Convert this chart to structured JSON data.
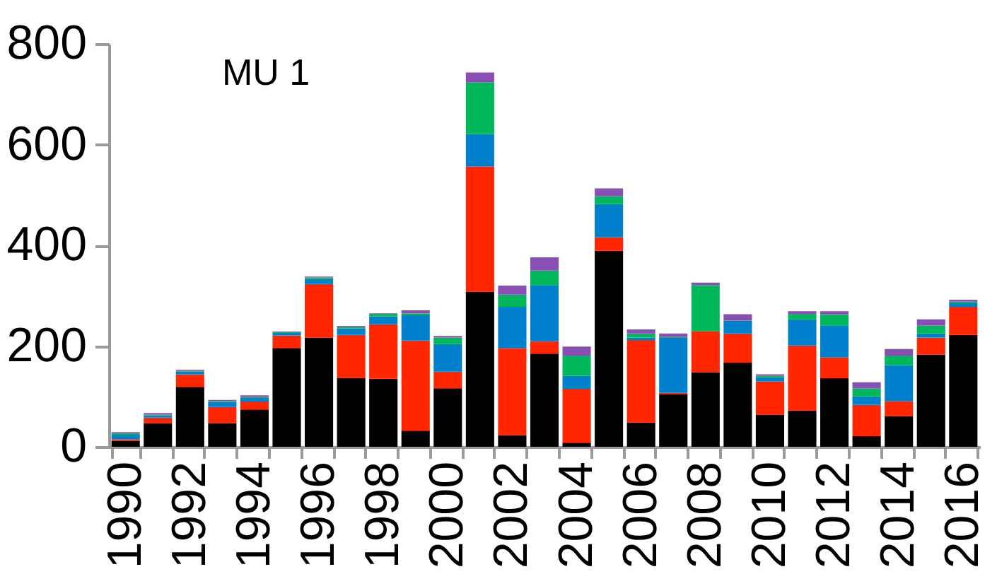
{
  "chart_data": {
    "type": "bar",
    "stacked": true,
    "categories": [
      "1990",
      null,
      "1992",
      null,
      "1994",
      null,
      "1996",
      null,
      "1998",
      null,
      "2000",
      null,
      "2002",
      null,
      "2004",
      null,
      "2006",
      null,
      "2008",
      null,
      "2010",
      null,
      "2012",
      null,
      "2014",
      null,
      "2016"
    ],
    "series": [
      {
        "color": "#000000",
        "values": [
          12,
          47,
          119,
          47,
          74,
          196,
          217,
          137,
          135,
          32,
          116,
          308,
          23,
          185,
          8,
          389,
          48,
          104,
          148,
          167,
          64,
          72,
          136,
          21,
          61,
          183,
          222
        ]
      },
      {
        "color": "#ff2600",
        "values": [
          3,
          11,
          25,
          32,
          16,
          25,
          106,
          85,
          108,
          179,
          33,
          249,
          173,
          25,
          107,
          27,
          164,
          3,
          82,
          58,
          66,
          129,
          42,
          62,
          30,
          34,
          56
        ]
      },
      {
        "color": "#0080cc",
        "values": [
          9,
          4,
          5,
          10,
          7,
          5,
          10,
          13,
          16,
          50,
          55,
          64,
          82,
          111,
          26,
          66,
          5,
          109,
          0,
          25,
          8,
          52,
          63,
          17,
          71,
          8,
          7
        ]
      },
      {
        "color": "#00b85c",
        "values": [
          3,
          2,
          2,
          2,
          2,
          2,
          3,
          3,
          5,
          4,
          13,
          103,
          24,
          29,
          40,
          16,
          8,
          2,
          91,
          1,
          3,
          11,
          22,
          16,
          19,
          16,
          3
        ]
      },
      {
        "color": "#8a4fb5",
        "values": [
          2,
          3,
          2,
          2,
          3,
          1,
          2,
          2,
          1,
          6,
          3,
          19,
          18,
          26,
          18,
          15,
          8,
          7,
          5,
          12,
          3,
          5,
          6,
          12,
          13,
          12,
          4
        ]
      }
    ],
    "ylim": [
      0,
      800
    ],
    "yticks": [
      0,
      200,
      400,
      600,
      800
    ],
    "grid": false,
    "annotations": [
      "MU 1"
    ]
  }
}
